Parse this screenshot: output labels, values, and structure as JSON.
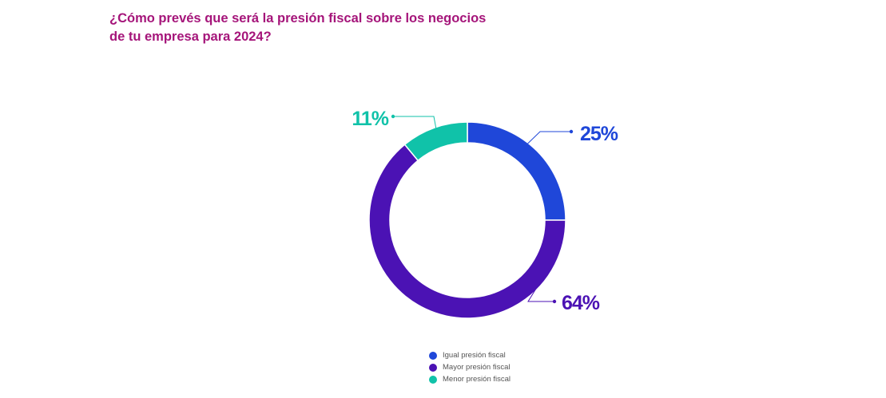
{
  "title": {
    "line1": "¿Cómo prevés que será la presión fiscal sobre los negocios",
    "line2": "de tu empresa para 2024?"
  },
  "chart_data": {
    "type": "pie",
    "style": "donut",
    "title": "¿Cómo prevés que será la presión fiscal sobre los negocios de tu empresa para 2024?",
    "slices": [
      {
        "name": "Igual presión fiscal",
        "value": 25,
        "label": "25%",
        "color": "#1f47d9"
      },
      {
        "name": "Mayor presión fiscal",
        "value": 64,
        "label": "64%",
        "color": "#4b12b4"
      },
      {
        "name": "Menor presión fiscal",
        "value": 11,
        "label": "11%",
        "color": "#10c2a9"
      }
    ],
    "legend_position": "bottom"
  }
}
